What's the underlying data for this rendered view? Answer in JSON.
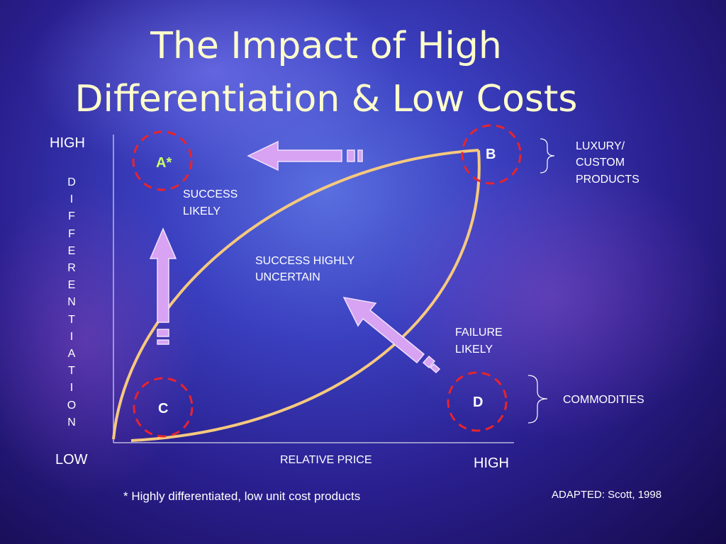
{
  "title_lines": [
    "The Impact of High",
    "Differentiation & Low Costs"
  ],
  "y_axis": {
    "high": "HIGH",
    "label": "DIFFERENTIATION",
    "low": "LOW"
  },
  "x_axis": {
    "label": "RELATIVE PRICE",
    "high": "HIGH"
  },
  "nodes": [
    "A*",
    "B",
    "C",
    "D"
  ],
  "regions": [
    [
      "SUCCESS",
      "LIKELY"
    ],
    [
      "SUCCESS HIGHLY",
      "UNCERTAIN"
    ],
    [
      "FAILURE",
      "LIKELY"
    ]
  ],
  "groups": [
    [
      "LUXURY/",
      "CUSTOM",
      "PRODUCTS"
    ],
    [
      "COMMODITIES"
    ]
  ],
  "footnote": "* Highly differentiated, low unit cost products",
  "source": "ADAPTED: Scott, 1998"
}
